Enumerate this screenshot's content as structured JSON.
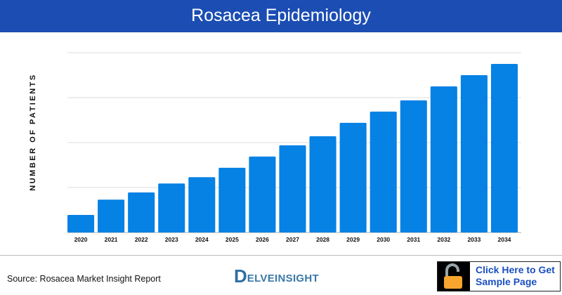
{
  "header": {
    "title": "Rosacea Epidemiology"
  },
  "chart_data": {
    "type": "bar",
    "title": "Rosacea Epidemiology",
    "ylabel": "NUMBER OF PATIENTS",
    "xlabel": "",
    "categories": [
      "2020",
      "2021",
      "2022",
      "2023",
      "2024",
      "2025",
      "2026",
      "2027",
      "2028",
      "2029",
      "2030",
      "2031",
      "2032",
      "2033",
      "2034"
    ],
    "values": [
      0.39,
      0.73,
      0.89,
      1.09,
      1.23,
      1.44,
      1.69,
      1.94,
      2.14,
      2.44,
      2.69,
      2.94,
      3.25,
      3.5,
      3.75
    ],
    "ylim": [
      0,
      4
    ],
    "y_tick_labels_shown": false,
    "grid": true,
    "bar_color": "#0681e4"
  },
  "footer": {
    "source": "Source: Rosacea Market Insight Report",
    "logo_text": "DELVEINSIGHT",
    "cta_line1": "Click Here to Get",
    "cta_line2": "Sample Page",
    "cta_icon": "unlocked-padlock-icon",
    "lock_color": "#f8a52f"
  }
}
